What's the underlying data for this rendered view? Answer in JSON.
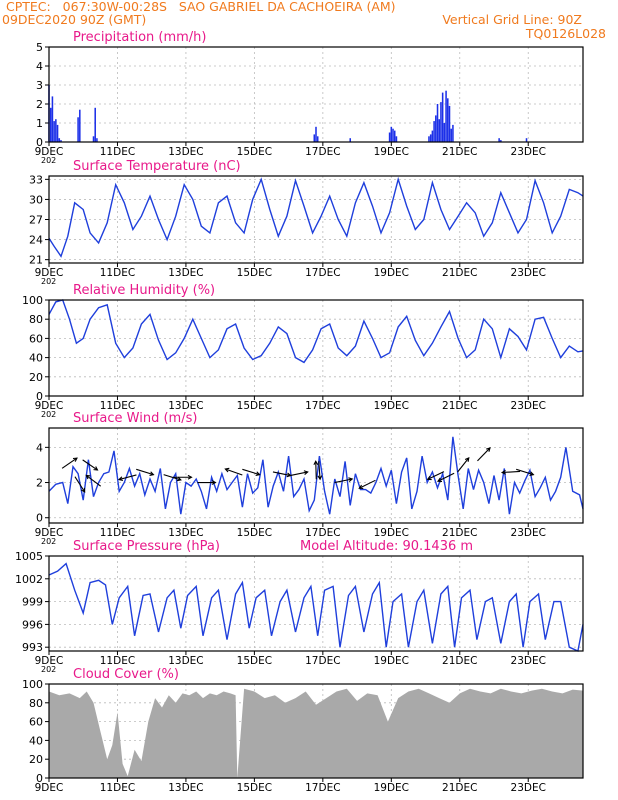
{
  "header": {
    "line1": "CPTEC:   067:30W-00:28S   SAO GABRIEL DA CACHOEIRA (AM)",
    "line2_left": "09DEC2020 90Z (GMT)",
    "line2_right": "Vertical Grid Line: 90Z",
    "line3_right": "TQ0126L028"
  },
  "x_ticks": [
    "9DEC",
    "11DEC",
    "13DEC",
    "15DEC",
    "17DEC",
    "19DEC",
    "21DEC",
    "23DEC"
  ],
  "x_ticks_first_alt": "9DEC",
  "x_tick_overlap": "202",
  "x_range_days": [
    9,
    24.6
  ],
  "colors": {
    "line": "#1f3fdc",
    "precip_bar": "#1c30e8",
    "cloud": "#a9a9a9",
    "title": "#e8198a",
    "header": "#f07a1e"
  },
  "chart_data": [
    {
      "type": "bar",
      "title": "Precipitation (mm/h)",
      "ylim": [
        0,
        5
      ],
      "yticks": [
        "0",
        "1",
        "2",
        "3",
        "4",
        "5"
      ],
      "grid": true,
      "x": [
        9.0,
        9.05,
        9.1,
        9.15,
        9.2,
        9.25,
        9.3,
        9.35,
        9.85,
        9.9,
        10.3,
        10.35,
        10.4,
        16.75,
        16.8,
        16.85,
        17.8,
        18.95,
        19.0,
        19.05,
        19.1,
        19.15,
        20.1,
        20.15,
        20.2,
        20.25,
        20.3,
        20.35,
        20.4,
        20.45,
        20.5,
        20.55,
        20.6,
        20.65,
        20.7,
        20.75,
        20.8,
        22.15,
        22.2,
        22.95
      ],
      "values": [
        3.0,
        1.8,
        2.4,
        1.1,
        1.2,
        0.9,
        0.2,
        0.1,
        1.3,
        1.7,
        0.3,
        1.8,
        0.2,
        0.4,
        0.8,
        0.3,
        0.2,
        0.5,
        0.8,
        0.7,
        0.6,
        0.3,
        0.3,
        0.4,
        0.6,
        1.1,
        1.4,
        2.0,
        1.2,
        2.1,
        2.6,
        1.0,
        2.7,
        2.3,
        1.9,
        0.7,
        0.9,
        0.2,
        0.1,
        0.2
      ]
    },
    {
      "type": "line",
      "title": "Surface Temperature (nC)",
      "ylim": [
        20.5,
        33.5
      ],
      "yticks": [
        "21",
        "24",
        "27",
        "30",
        "33"
      ],
      "grid": true,
      "x": [
        9.0,
        9.15,
        9.35,
        9.55,
        9.75,
        10.0,
        10.2,
        10.45,
        10.7,
        10.95,
        11.2,
        11.45,
        11.7,
        11.95,
        12.2,
        12.45,
        12.7,
        12.95,
        13.2,
        13.45,
        13.7,
        13.95,
        14.2,
        14.45,
        14.7,
        14.95,
        15.2,
        15.45,
        15.7,
        15.95,
        16.2,
        16.45,
        16.7,
        16.95,
        17.2,
        17.45,
        17.7,
        17.95,
        18.2,
        18.45,
        18.7,
        18.95,
        19.2,
        19.45,
        19.7,
        19.95,
        20.2,
        20.45,
        20.7,
        20.95,
        21.2,
        21.45,
        21.7,
        21.95,
        22.2,
        22.45,
        22.7,
        22.95,
        23.2,
        23.45,
        23.7,
        23.95,
        24.2,
        24.45,
        24.6
      ],
      "values": [
        24.2,
        23.0,
        21.5,
        24.5,
        29.5,
        28.5,
        25.0,
        23.5,
        26.5,
        32.2,
        29.5,
        25.5,
        27.5,
        30.5,
        27.0,
        24.0,
        27.5,
        32.2,
        30.0,
        26.0,
        25.0,
        29.5,
        30.5,
        26.5,
        25.0,
        30.0,
        33.0,
        28.5,
        24.5,
        27.5,
        32.8,
        29.0,
        25.0,
        27.5,
        30.5,
        27.0,
        24.5,
        29.5,
        32.5,
        29.0,
        25.0,
        28.0,
        33.0,
        29.0,
        25.5,
        27.0,
        32.5,
        28.5,
        25.5,
        27.5,
        29.5,
        28.0,
        24.5,
        26.5,
        31.0,
        28.0,
        25.0,
        27.0,
        32.8,
        29.5,
        25.0,
        27.5,
        31.5,
        31.0,
        30.5
      ]
    },
    {
      "type": "line",
      "title": "Relative Humidity (%)",
      "ylim": [
        0,
        100
      ],
      "yticks": [
        "0",
        "20",
        "40",
        "60",
        "80",
        "100"
      ],
      "grid": true,
      "x": [
        9.0,
        9.2,
        9.4,
        9.6,
        9.8,
        10.0,
        10.2,
        10.45,
        10.7,
        10.95,
        11.2,
        11.45,
        11.7,
        11.95,
        12.2,
        12.45,
        12.7,
        12.95,
        13.2,
        13.45,
        13.7,
        13.95,
        14.2,
        14.45,
        14.7,
        14.95,
        15.2,
        15.45,
        15.7,
        15.95,
        16.2,
        16.45,
        16.7,
        16.95,
        17.2,
        17.45,
        17.7,
        17.95,
        18.2,
        18.45,
        18.7,
        18.95,
        19.2,
        19.45,
        19.7,
        19.95,
        20.2,
        20.45,
        20.7,
        20.95,
        21.2,
        21.45,
        21.7,
        21.95,
        22.2,
        22.45,
        22.7,
        22.95,
        23.2,
        23.45,
        23.7,
        23.95,
        24.2,
        24.45,
        24.6
      ],
      "values": [
        85,
        98,
        100,
        80,
        55,
        60,
        80,
        92,
        95,
        55,
        40,
        50,
        75,
        85,
        58,
        38,
        45,
        60,
        80,
        60,
        40,
        48,
        70,
        75,
        50,
        38,
        42,
        55,
        72,
        65,
        40,
        35,
        48,
        70,
        75,
        50,
        42,
        52,
        78,
        60,
        40,
        45,
        72,
        83,
        58,
        42,
        55,
        72,
        88,
        60,
        40,
        48,
        80,
        70,
        40,
        70,
        62,
        48,
        80,
        82,
        60,
        40,
        52,
        46,
        47
      ]
    },
    {
      "type": "line",
      "title": "Surface Wind (m/s)",
      "ylim": [
        -0.3,
        5.1
      ],
      "yticks": [
        "0",
        "2",
        "4"
      ],
      "grid": true,
      "x": [
        9.0,
        9.2,
        9.4,
        9.55,
        9.7,
        9.85,
        10.0,
        10.15,
        10.3,
        10.45,
        10.6,
        10.75,
        10.9,
        11.05,
        11.2,
        11.35,
        11.5,
        11.65,
        11.8,
        11.95,
        12.1,
        12.25,
        12.4,
        12.55,
        12.7,
        12.85,
        13.0,
        13.15,
        13.3,
        13.45,
        13.6,
        13.75,
        13.9,
        14.05,
        14.2,
        14.35,
        14.5,
        14.65,
        14.8,
        14.95,
        15.1,
        15.25,
        15.4,
        15.55,
        15.7,
        15.85,
        16.0,
        16.15,
        16.3,
        16.45,
        16.6,
        16.75,
        16.9,
        17.05,
        17.2,
        17.35,
        17.5,
        17.65,
        17.8,
        17.95,
        18.1,
        18.25,
        18.4,
        18.55,
        18.7,
        18.85,
        19.0,
        19.15,
        19.3,
        19.45,
        19.6,
        19.75,
        19.9,
        20.05,
        20.2,
        20.35,
        20.5,
        20.65,
        20.8,
        20.95,
        21.1,
        21.25,
        21.4,
        21.55,
        21.7,
        21.85,
        22.0,
        22.15,
        22.3,
        22.45,
        22.6,
        22.75,
        22.9,
        23.05,
        23.2,
        23.35,
        23.5,
        23.65,
        23.8,
        23.95,
        24.1,
        24.3,
        24.5,
        24.6
      ],
      "values": [
        1.5,
        1.9,
        2.0,
        0.8,
        2.9,
        2.5,
        1.0,
        3.3,
        1.2,
        2.0,
        2.5,
        2.6,
        3.8,
        1.5,
        2.0,
        2.8,
        1.8,
        2.5,
        1.3,
        2.2,
        1.5,
        2.8,
        0.5,
        2.0,
        2.5,
        0.2,
        2.0,
        1.8,
        2.2,
        1.5,
        0.5,
        2.3,
        1.5,
        2.5,
        1.6,
        2.0,
        2.4,
        0.6,
        2.5,
        1.4,
        1.7,
        3.3,
        0.6,
        1.8,
        2.6,
        1.5,
        3.5,
        1.2,
        1.6,
        2.2,
        0.4,
        1.0,
        3.5,
        1.5,
        0.2,
        2.2,
        1.2,
        3.2,
        0.7,
        2.5,
        1.6,
        1.6,
        1.4,
        2.0,
        2.8,
        1.8,
        2.7,
        0.8,
        2.6,
        3.4,
        0.5,
        1.5,
        3.5,
        2.0,
        2.6,
        1.7,
        2.5,
        1.0,
        4.6,
        2.4,
        0.5,
        2.8,
        1.6,
        2.7,
        2.0,
        0.8,
        2.4,
        1.0,
        2.8,
        0.2,
        2.0,
        1.4,
        2.1,
        2.7,
        1.2,
        1.7,
        2.3,
        1.0,
        1.5,
        2.3,
        4.0,
        1.5,
        1.3,
        0.5
      ]
    },
    {
      "type": "line",
      "title": "Surface Pressure (hPa)",
      "annotation": "Model Altitude: 90.1436 m",
      "ylim": [
        992.5,
        1005
      ],
      "yticks": [
        "993",
        "996",
        "999",
        "1002",
        "1005"
      ],
      "grid": true,
      "x": [
        9.0,
        9.25,
        9.5,
        9.75,
        10.0,
        10.2,
        10.45,
        10.65,
        10.85,
        11.05,
        11.3,
        11.5,
        11.75,
        11.95,
        12.2,
        12.45,
        12.65,
        12.85,
        13.05,
        13.3,
        13.5,
        13.75,
        13.95,
        14.2,
        14.45,
        14.65,
        14.85,
        15.05,
        15.3,
        15.5,
        15.75,
        15.95,
        16.2,
        16.45,
        16.65,
        16.85,
        17.05,
        17.3,
        17.5,
        17.75,
        17.95,
        18.2,
        18.45,
        18.65,
        18.85,
        19.05,
        19.3,
        19.5,
        19.75,
        19.95,
        20.2,
        20.45,
        20.65,
        20.85,
        21.05,
        21.3,
        21.5,
        21.75,
        21.95,
        22.2,
        22.45,
        22.65,
        22.85,
        23.05,
        23.3,
        23.5,
        23.75,
        23.95,
        24.2,
        24.45,
        24.6
      ],
      "values": [
        1002.5,
        1003.0,
        1004.0,
        1000.5,
        997.5,
        1001.5,
        1001.8,
        1001.2,
        996.0,
        999.5,
        1001.0,
        994.5,
        999.8,
        1000.0,
        995.0,
        999.5,
        1000.5,
        995.5,
        999.8,
        1001.0,
        994.5,
        999.5,
        1000.5,
        994.0,
        1000.0,
        1001.5,
        995.5,
        999.5,
        1000.5,
        994.5,
        999.0,
        1000.5,
        995.0,
        999.5,
        1001.0,
        994.5,
        1000.5,
        1001.0,
        993.0,
        999.8,
        1001.0,
        995.0,
        1000.0,
        1001.5,
        993.0,
        999.0,
        1000.0,
        993.0,
        999.0,
        1000.5,
        993.5,
        1000.0,
        1001.0,
        993.0,
        999.5,
        1000.5,
        994.0,
        999.0,
        999.5,
        993.5,
        999.0,
        1000.0,
        993.0,
        999.0,
        1000.0,
        994.0,
        999.0,
        999.0,
        993.0,
        992.5,
        996.0
      ]
    },
    {
      "type": "area",
      "title": "Cloud Cover (%)",
      "ylim": [
        0,
        100
      ],
      "yticks": [
        "0",
        "20",
        "40",
        "60",
        "80",
        "100"
      ],
      "grid": true,
      "x": [
        9.0,
        9.3,
        9.6,
        9.9,
        10.1,
        10.3,
        10.5,
        10.7,
        10.85,
        11.0,
        11.15,
        11.3,
        11.5,
        11.7,
        11.9,
        12.1,
        12.3,
        12.5,
        12.7,
        12.9,
        13.1,
        13.3,
        13.5,
        13.7,
        13.9,
        14.1,
        14.3,
        14.45,
        14.5,
        14.7,
        15.0,
        15.3,
        15.6,
        15.9,
        16.2,
        16.5,
        16.8,
        17.1,
        17.4,
        17.7,
        18.0,
        18.3,
        18.6,
        18.9,
        19.2,
        19.5,
        19.8,
        20.1,
        20.4,
        20.7,
        21.0,
        21.3,
        21.6,
        21.9,
        22.2,
        22.5,
        22.8,
        23.1,
        23.4,
        23.7,
        24.0,
        24.3,
        24.6
      ],
      "values": [
        92,
        88,
        90,
        85,
        92,
        80,
        50,
        20,
        35,
        70,
        15,
        2,
        30,
        18,
        60,
        85,
        75,
        88,
        80,
        90,
        88,
        92,
        85,
        90,
        88,
        92,
        90,
        88,
        0,
        95,
        92,
        85,
        88,
        80,
        85,
        92,
        78,
        85,
        92,
        95,
        82,
        90,
        88,
        60,
        85,
        92,
        95,
        90,
        85,
        80,
        90,
        95,
        92,
        90,
        95,
        92,
        90,
        93,
        95,
        92,
        90,
        94,
        93
      ]
    }
  ]
}
